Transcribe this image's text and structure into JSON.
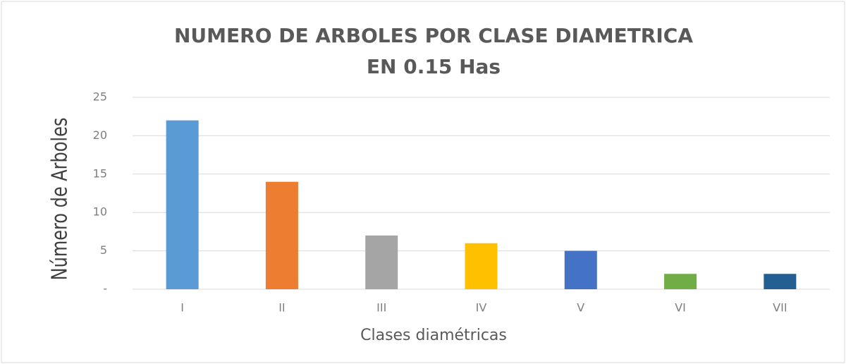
{
  "chart_data": {
    "type": "bar",
    "title": [
      "NUMERO DE ARBOLES POR CLASE DIAMETRICA",
      "EN 0.15 Has"
    ],
    "x_label": "Clases diamétricas",
    "y_label": "Número de Arboles",
    "categories": [
      "I",
      "II",
      "III",
      "IV",
      "V",
      "VI",
      "VII"
    ],
    "values": [
      22,
      14,
      7,
      6,
      5,
      2,
      2
    ],
    "colors": [
      "#5b9bd5",
      "#ed7d31",
      "#a5a5a5",
      "#ffc000",
      "#4472c4",
      "#70ad47",
      "#255e91"
    ],
    "ylim": [
      0,
      25
    ],
    "yticks": [
      {
        "value": 0,
        "label": "-"
      },
      5,
      10,
      15,
      20,
      25
    ],
    "grid": true
  }
}
